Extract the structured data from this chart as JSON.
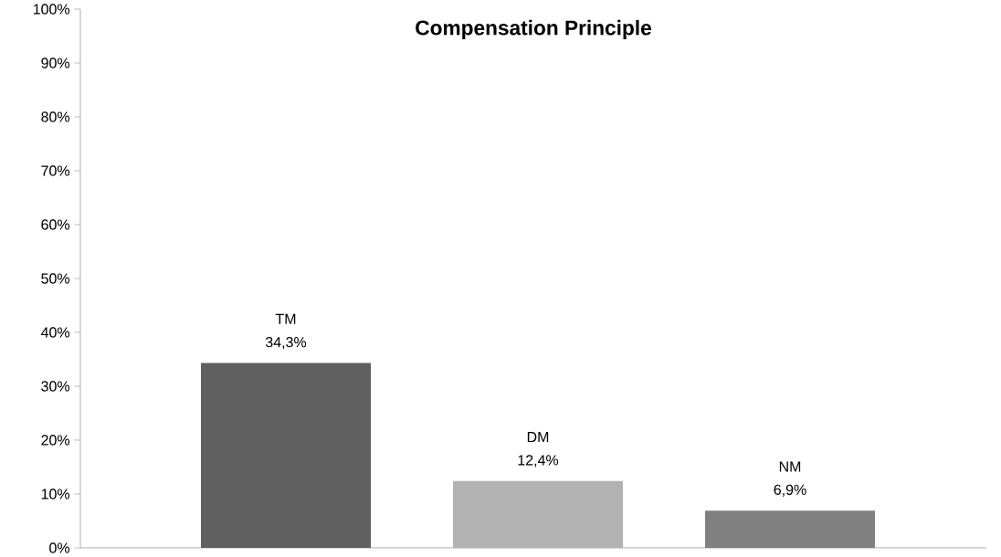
{
  "chart_data": {
    "type": "bar",
    "title": "Compensation Principle",
    "categories": [
      "TM",
      "DM",
      "NM"
    ],
    "values": [
      34.3,
      12.4,
      6.9
    ],
    "colors": [
      "#606060",
      "#b2b2b2",
      "#808080"
    ],
    "value_labels": [
      "34,3%",
      "12,4%",
      "6,9%"
    ],
    "ylim": [
      0,
      100
    ],
    "yticks": [
      {
        "value": 0,
        "label": "0%"
      },
      {
        "value": 10,
        "label": "10%"
      },
      {
        "value": 20,
        "label": "20%"
      },
      {
        "value": 30,
        "label": "30%"
      },
      {
        "value": 40,
        "label": "40%"
      },
      {
        "value": 50,
        "label": "50%"
      },
      {
        "value": 60,
        "label": "60%"
      },
      {
        "value": 70,
        "label": "70%"
      },
      {
        "value": 80,
        "label": "80%"
      },
      {
        "value": 90,
        "label": "90%"
      },
      {
        "value": 100,
        "label": "100%"
      }
    ],
    "grid": false
  }
}
